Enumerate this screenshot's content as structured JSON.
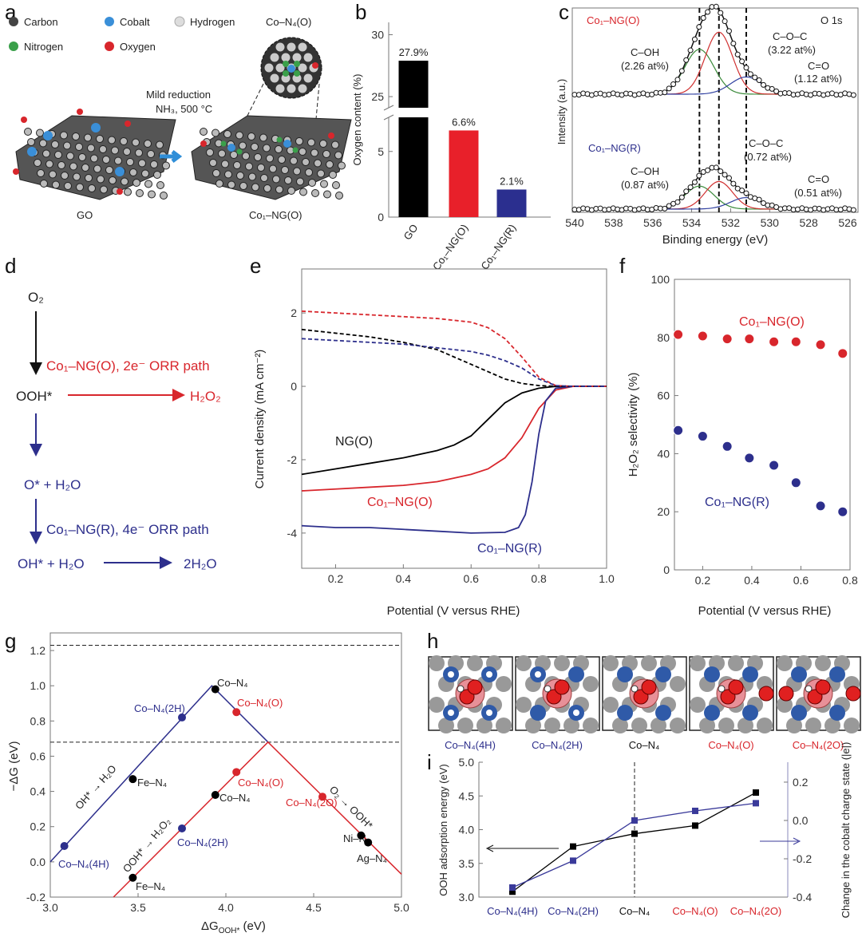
{
  "panels": {
    "a": "a",
    "b": "b",
    "c": "c",
    "d": "d",
    "e": "e",
    "f": "f",
    "g": "g",
    "h": "h",
    "i": "i"
  },
  "panel_a": {
    "legend": [
      "Carbon",
      "Cobalt",
      "Hydrogen",
      "Nitrogen",
      "Oxygen"
    ],
    "legend_colors": [
      "#444444",
      "#3a8fd8",
      "#dddddd",
      "#3aa04a",
      "#d8262c"
    ],
    "inset_title": "Co–N₄(O)",
    "reaction_line1": "Mild reduction",
    "reaction_line2": "NH₃, 500 °C",
    "left_label": "GO",
    "right_label": "Co₁–NG(O)"
  },
  "panel_d": {
    "o2": "O₂",
    "path_2e": "Co₁–NG(O), 2e⁻ ORR path",
    "ooh": "OOH*",
    "h2o2": "H₂O₂",
    "o_h2o": "O* + H₂O",
    "path_4e": "Co₁–NG(R), 4e⁻ ORR path",
    "oh_h2o": "OH* + H₂O",
    "two_h2o": "2H₂O"
  },
  "panel_h": {
    "labels": [
      "Co–N₄(4H)",
      "Co–N₄(2H)",
      "Co–N₄",
      "Co–N₄(O)",
      "Co–N₄(2O)"
    ],
    "label_colors": [
      "#2d2f8c",
      "#2d2f8c",
      "#111111",
      "#d8262c",
      "#d8262c"
    ]
  },
  "chart_data": [
    {
      "panel": "b",
      "type": "bar",
      "categories": [
        "GO",
        "Co₁–NG(O)",
        "Co₁–NG(R)"
      ],
      "values": [
        27.9,
        6.6,
        2.1
      ],
      "value_labels": [
        "27.9%",
        "6.6%",
        "2.1%"
      ],
      "colors": [
        "#000000",
        "#e8202a",
        "#2b2f8f"
      ],
      "ylabel": "Oxygen content (%)",
      "yticks_lower": [
        "0",
        "5"
      ],
      "yticks_upper": [
        "25",
        "30"
      ],
      "ylim_lower": [
        0,
        7.6
      ],
      "ylim_upper": [
        24.1,
        31
      ],
      "axis_break": true
    },
    {
      "panel": "c",
      "type": "line",
      "title": "O 1s",
      "xlabel": "Binding energy (eV)",
      "ylabel": "Intensity (a.u.)",
      "xlim": [
        540.12,
        525.47
      ],
      "ylim": [
        -0.028,
        1.75
      ],
      "xticks": [
        "540",
        "538",
        "536",
        "534",
        "532",
        "530",
        "528",
        "526"
      ],
      "dashed_lines_x": [
        533.6,
        532.6,
        531.2
      ],
      "series": [
        {
          "name": "Co₁–NG(O)",
          "color": "#d8262c",
          "offset": 1.0,
          "components": [
            {
              "name": "C–OH",
              "pct": "(2.26 at%)",
              "center": 533.6,
              "amplitude": 0.39,
              "sigma": 0.75,
              "color": "#3a8a3a"
            },
            {
              "name": "C–O–C",
              "pct": "(3.22 at%)",
              "center": 532.6,
              "amplitude": 0.54,
              "sigma": 0.7,
              "color": "#d03030"
            },
            {
              "name": "C=O",
              "pct": "(1.12 at%)",
              "center": 531.2,
              "amplitude": 0.15,
              "sigma": 0.8,
              "color": "#3040a0"
            }
          ]
        },
        {
          "name": "Co₁–NG(R)",
          "color": "#2d2f8c",
          "offset": 0.0,
          "components": [
            {
              "name": "C–OH",
              "pct": "(0.87 at%)",
              "center": 533.6,
              "amplitude": 0.2,
              "sigma": 0.75,
              "color": "#3a8a3a"
            },
            {
              "name": "C–O–C",
              "pct": "(0.72 at%)",
              "center": 532.6,
              "amplitude": 0.24,
              "sigma": 0.7,
              "color": "#d03030"
            },
            {
              "name": "C=O",
              "pct": "(0.51 at%)",
              "center": 531.2,
              "amplitude": 0.1,
              "sigma": 0.8,
              "color": "#3040a0"
            }
          ]
        }
      ]
    },
    {
      "panel": "e",
      "type": "line",
      "xlabel": "Potential (V versus RHE)",
      "ylabel": "Current density (mA cm⁻²)",
      "xlim": [
        0.1,
        1.0
      ],
      "ylim": [
        -4.96,
        3.2
      ],
      "xticks": [
        "0.2",
        "0.4",
        "0.6",
        "0.8",
        "1.0"
      ],
      "yticks": [
        "2",
        "0",
        "-2",
        "-4"
      ],
      "series": [
        {
          "name": "NG(O)",
          "color": "#000000",
          "style": "solid",
          "x": [
            0.1,
            0.2,
            0.3,
            0.4,
            0.5,
            0.55,
            0.6,
            0.65,
            0.7,
            0.75,
            0.8,
            0.85,
            0.9,
            1.0
          ],
          "y": [
            -2.4,
            -2.25,
            -2.1,
            -1.95,
            -1.75,
            -1.6,
            -1.35,
            -0.9,
            -0.45,
            -0.18,
            -0.05,
            0,
            0,
            0
          ]
        },
        {
          "name": "Co₁–NG(O)",
          "color": "#d8262c",
          "style": "solid",
          "x": [
            0.1,
            0.2,
            0.3,
            0.4,
            0.5,
            0.55,
            0.6,
            0.65,
            0.7,
            0.75,
            0.8,
            0.85,
            0.9,
            1.0
          ],
          "y": [
            -2.85,
            -2.8,
            -2.75,
            -2.7,
            -2.6,
            -2.5,
            -2.4,
            -2.25,
            -1.95,
            -1.4,
            -0.6,
            -0.1,
            0,
            0
          ]
        },
        {
          "name": "Co₁–NG(R)",
          "color": "#2d2f8c",
          "style": "solid",
          "x": [
            0.1,
            0.2,
            0.3,
            0.4,
            0.5,
            0.6,
            0.7,
            0.74,
            0.76,
            0.78,
            0.8,
            0.82,
            0.85,
            0.9,
            1.0
          ],
          "y": [
            -3.8,
            -3.85,
            -3.85,
            -3.9,
            -3.95,
            -4.0,
            -3.98,
            -3.85,
            -3.5,
            -2.6,
            -1.3,
            -0.4,
            -0.05,
            0,
            0
          ]
        },
        {
          "name": "Co₁–NG(O) ring",
          "color": "#d8262c",
          "style": "dashed",
          "x": [
            0.1,
            0.2,
            0.3,
            0.4,
            0.5,
            0.6,
            0.65,
            0.7,
            0.75,
            0.8,
            0.85,
            0.9,
            1.0
          ],
          "y": [
            2.05,
            2.0,
            1.95,
            1.9,
            1.85,
            1.75,
            1.6,
            1.3,
            0.8,
            0.25,
            0.02,
            0,
            0
          ]
        },
        {
          "name": "NG(O) ring",
          "color": "#000000",
          "style": "dashed",
          "x": [
            0.1,
            0.2,
            0.3,
            0.4,
            0.5,
            0.6,
            0.65,
            0.7,
            0.75,
            0.8,
            0.85,
            0.9,
            1.0
          ],
          "y": [
            1.55,
            1.45,
            1.35,
            1.2,
            1.0,
            0.6,
            0.4,
            0.2,
            0.08,
            0.02,
            0,
            0,
            0
          ]
        },
        {
          "name": "Co₁–NG(R) ring",
          "color": "#2d2f8c",
          "style": "dashed",
          "x": [
            0.1,
            0.2,
            0.3,
            0.4,
            0.5,
            0.6,
            0.65,
            0.7,
            0.75,
            0.8,
            0.85,
            0.9,
            1.0
          ],
          "y": [
            1.3,
            1.25,
            1.2,
            1.15,
            1.05,
            0.95,
            0.85,
            0.7,
            0.5,
            0.2,
            0.02,
            0,
            0
          ]
        }
      ]
    },
    {
      "panel": "f",
      "type": "scatter",
      "xlabel": "Potential (V versus RHE)",
      "ylabel": "H₂O₂ selectivity (%)",
      "xlim": [
        0.085,
        0.8
      ],
      "ylim": [
        0,
        100
      ],
      "xticks": [
        "0.2",
        "0.4",
        "0.6",
        "0.8"
      ],
      "yticks": [
        "0",
        "20",
        "40",
        "60",
        "80",
        "100"
      ],
      "series": [
        {
          "name": "Co₁–NG(O)",
          "color": "#d8262c",
          "x": [
            0.1,
            0.2,
            0.3,
            0.39,
            0.49,
            0.58,
            0.68,
            0.77
          ],
          "y": [
            81,
            80.5,
            79.5,
            79.5,
            78.5,
            78.5,
            77.5,
            74.5
          ]
        },
        {
          "name": "Co₁–NG(R)",
          "color": "#2d2f8c",
          "x": [
            0.1,
            0.2,
            0.3,
            0.39,
            0.49,
            0.58,
            0.68,
            0.77
          ],
          "y": [
            48,
            46,
            42.5,
            38.5,
            36,
            30,
            22,
            20
          ]
        }
      ]
    },
    {
      "panel": "g",
      "type": "scatter",
      "xlabel_main": "ΔG",
      "xlabel_sub": "OOH*",
      "xlabel_unit": " (eV)",
      "ylabel": "−ΔG (eV)",
      "xlim": [
        3.0,
        5.0
      ],
      "ylim": [
        -0.2,
        1.3
      ],
      "xticks": [
        "3.0",
        "3.5",
        "4.0",
        "4.5",
        "5.0"
      ],
      "yticks": [
        "-0.2",
        "0.0",
        "0.2",
        "0.4",
        "0.6",
        "0.8",
        "1.0",
        "1.2"
      ],
      "dashed_lines_y": [
        1.23,
        0.68
      ],
      "lines": [
        {
          "name": "4e volcano left",
          "color": "#2d2f8c",
          "x": [
            3.0,
            3.92,
            4.24
          ],
          "y": [
            0.0,
            1.0,
            0.68
          ]
        },
        {
          "name": "2e volcano",
          "color": "#d8262c",
          "x": [
            3.36,
            4.24,
            5.0
          ],
          "y": [
            -0.2,
            0.68,
            -0.07
          ]
        }
      ],
      "line_labels": [
        "OH* → H₂O",
        "OOH* → H₂O₂",
        "O₂ → OOH*"
      ],
      "points": [
        {
          "label": "Co–N₄(4H)",
          "x": 3.08,
          "y": 0.09,
          "color": "#2d2f8c"
        },
        {
          "label": "Co–N₄(2H)",
          "x": 3.75,
          "y": 0.82,
          "color": "#2d2f8c"
        },
        {
          "label": "Co–N₄",
          "x": 3.94,
          "y": 0.98,
          "color": "#000000"
        },
        {
          "label": "Co–N₄(O)",
          "x": 4.06,
          "y": 0.85,
          "color": "#d8262c"
        },
        {
          "label": "Fe–N₄",
          "x": 3.47,
          "y": 0.47,
          "color": "#000000"
        },
        {
          "label": "Co–N₄(O)",
          "x": 4.06,
          "y": 0.51,
          "color": "#d8262c"
        },
        {
          "label": "Co–N₄",
          "x": 3.94,
          "y": 0.38,
          "color": "#000000"
        },
        {
          "label": "Co–N₄(2O)",
          "x": 4.55,
          "y": 0.37,
          "color": "#d8262c"
        },
        {
          "label": "Co–N₄(2H)",
          "x": 3.75,
          "y": 0.19,
          "color": "#2d2f8c"
        },
        {
          "label": "Ni–N₄",
          "x": 4.77,
          "y": 0.15,
          "color": "#000000"
        },
        {
          "label": "Ag–N₄",
          "x": 4.81,
          "y": 0.11,
          "color": "#000000"
        },
        {
          "label": "Fe–N₄",
          "x": 3.47,
          "y": -0.09,
          "color": "#000000"
        }
      ]
    },
    {
      "panel": "i",
      "type": "line",
      "categories": [
        "Co–N₄(4H)",
        "Co–N₄(2H)",
        "Co–N₄",
        "Co–N₄(O)",
        "Co–N₄(2O)"
      ],
      "category_colors": [
        "#2d2f8c",
        "#2d2f8c",
        "#111111",
        "#d8262c",
        "#d8262c"
      ],
      "ylabel_left": "OOH adsorption energy (eV)",
      "ylabel_right": "Change in the cobalt charge state (|e|)",
      "ylim_left": [
        3.0,
        5.0
      ],
      "ylim_right": [
        -0.4,
        0.304
      ],
      "yticks_left": [
        "3.0",
        "3.5",
        "4.0",
        "4.5",
        "5.0"
      ],
      "yticks_right": [
        "-0.4",
        "-0.2",
        "0.0",
        "0.2"
      ],
      "series": [
        {
          "name": "OOH adsorption energy",
          "axis": "left",
          "color": "#000000",
          "values": [
            3.08,
            3.75,
            3.94,
            4.06,
            4.55
          ]
        },
        {
          "name": "Cobalt charge change",
          "axis": "right",
          "color": "#3a3a9a",
          "values": [
            -0.35,
            -0.21,
            0.0,
            0.05,
            0.09
          ]
        }
      ]
    }
  ]
}
